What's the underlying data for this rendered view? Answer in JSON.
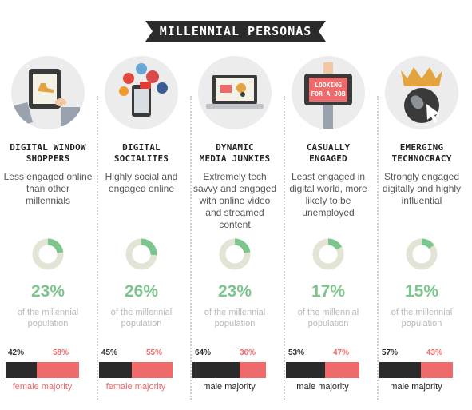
{
  "header": {
    "title": "MILLENNIAL PERSONAS"
  },
  "colors": {
    "accent_green": "#7cc68d",
    "male": "#2b2b2b",
    "female": "#ef6a6a",
    "donut_track": "#e3e3d6"
  },
  "personas": [
    {
      "title_line1": "DIGITAL WINDOW",
      "title_line2": "SHOPPERS",
      "description": "Less engaged online than other millennials",
      "percent_label": "23%",
      "percent_value": 23,
      "share_label": "of the millennial population",
      "male_label": "42%",
      "male_value": 42,
      "female_label": "58%",
      "female_value": 58,
      "majority": "female majority",
      "majority_type": "female",
      "icon": "tablet-shopping-icon"
    },
    {
      "title_line1": "DIGITAL",
      "title_line2": "SOCIALITES",
      "description": "Highly social and engaged online",
      "percent_label": "26%",
      "percent_value": 26,
      "share_label": "of the millennial population",
      "male_label": "45%",
      "male_value": 45,
      "female_label": "55%",
      "female_value": 55,
      "majority": "female majority",
      "majority_type": "female",
      "icon": "social-media-phone-icon"
    },
    {
      "title_line1": "DYNAMIC",
      "title_line2": "MEDIA JUNKIES",
      "description": "Extremely tech savvy and engaged with online video and streamed content",
      "percent_label": "23%",
      "percent_value": 23,
      "share_label": "of the millennial population",
      "male_label": "64%",
      "male_value": 64,
      "female_label": "36%",
      "female_value": 36,
      "majority": "male majority",
      "majority_type": "male",
      "icon": "laptop-media-icon"
    },
    {
      "title_line1": "CASUALLY",
      "title_line2": "ENGAGED",
      "description": "Least engaged in digital world, more likely to be unemployed",
      "percent_label": "17%",
      "percent_value": 17,
      "share_label": "of the millennial population",
      "male_label": "53%",
      "male_value": 53,
      "female_label": "47%",
      "female_value": 47,
      "majority": "male majority",
      "majority_type": "male",
      "icon": "looking-for-job-sign-icon",
      "sign_line1": "LOOKING",
      "sign_line2": "FOR A JOB"
    },
    {
      "title_line1": "EMERGING",
      "title_line2": "TECHNOCRACY",
      "description": "Strongly engaged digitally and highly influential",
      "percent_label": "15%",
      "percent_value": 15,
      "share_label": "of the millennial population",
      "male_label": "57%",
      "male_value": 57,
      "female_label": "43%",
      "female_value": 43,
      "majority": "male majority",
      "majority_type": "male",
      "icon": "crown-globe-icon"
    }
  ],
  "chart_data": {
    "type": "pie",
    "categories": [
      "DIGITAL WINDOW SHOPPERS",
      "DIGITAL SOCIALITES",
      "DYNAMIC MEDIA JUNKIES",
      "CASUALLY ENGAGED",
      "EMERGING TECHNOCRACY"
    ],
    "series": [
      {
        "name": "of the millennial population",
        "values": [
          23,
          26,
          23,
          17,
          15
        ]
      },
      {
        "name": "male",
        "values": [
          42,
          45,
          64,
          53,
          57
        ]
      },
      {
        "name": "female",
        "values": [
          58,
          55,
          36,
          47,
          43
        ]
      }
    ]
  }
}
